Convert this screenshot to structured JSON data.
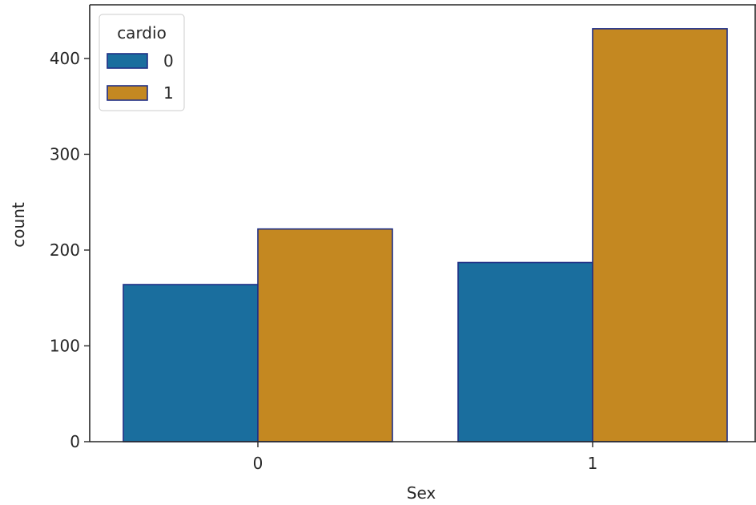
{
  "chart_data": {
    "type": "bar",
    "categories": [
      "0",
      "1"
    ],
    "series": [
      {
        "name": "0",
        "values": [
          164,
          187
        ],
        "color": "#1a6e9e"
      },
      {
        "name": "1",
        "values": [
          222,
          431
        ],
        "color": "#c48821"
      }
    ],
    "xlabel": "Sex",
    "ylabel": "count",
    "ylim": [
      0,
      456
    ],
    "yticks": [
      0,
      100,
      200,
      300,
      400
    ],
    "legend": {
      "title": "cardio",
      "placement": "top-left"
    },
    "bar_edge_color": "#1f2f86",
    "grid": false
  }
}
